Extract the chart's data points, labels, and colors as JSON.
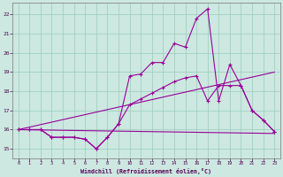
{
  "xlabel": "Windchill (Refroidissement éolien,°C)",
  "bg_color": "#cce8e0",
  "grid_color": "#99ccbb",
  "line_color": "#990099",
  "tick_color": "#550055",
  "xlabel_color": "#550055",
  "xlim": [
    -0.5,
    23.5
  ],
  "ylim": [
    14.5,
    22.6
  ],
  "x_ticks": [
    0,
    1,
    2,
    3,
    4,
    5,
    6,
    7,
    8,
    9,
    10,
    11,
    12,
    13,
    14,
    15,
    16,
    17,
    18,
    19,
    20,
    21,
    22,
    23
  ],
  "y_ticks": [
    15,
    16,
    17,
    18,
    19,
    20,
    21,
    22
  ],
  "line1_x": [
    0,
    1,
    2,
    3,
    4,
    5,
    6,
    7,
    8,
    9,
    10,
    11,
    12,
    13,
    14,
    15,
    16,
    17,
    18,
    19,
    20,
    21,
    22,
    23
  ],
  "line1_y": [
    16.0,
    16.0,
    16.0,
    15.6,
    15.6,
    15.6,
    15.5,
    15.0,
    15.6,
    16.3,
    18.8,
    18.9,
    19.5,
    19.5,
    20.5,
    20.3,
    21.8,
    22.3,
    17.5,
    19.4,
    18.3,
    17.0,
    16.5,
    15.9
  ],
  "line2_x": [
    0,
    1,
    2,
    3,
    4,
    5,
    6,
    7,
    8,
    9,
    10,
    11,
    12,
    13,
    14,
    15,
    16,
    17,
    18,
    19,
    20,
    21,
    22,
    23
  ],
  "line2_y": [
    16.0,
    16.0,
    16.0,
    15.6,
    15.6,
    15.6,
    15.5,
    15.0,
    15.6,
    16.3,
    17.3,
    17.6,
    17.9,
    18.2,
    18.5,
    18.7,
    18.8,
    17.5,
    18.3,
    18.3,
    18.3,
    17.0,
    16.5,
    15.9
  ],
  "line3_x": [
    0,
    23
  ],
  "line3_y": [
    16.0,
    19.0
  ],
  "line4_x": [
    0,
    23
  ],
  "line4_y": [
    16.0,
    15.8
  ]
}
